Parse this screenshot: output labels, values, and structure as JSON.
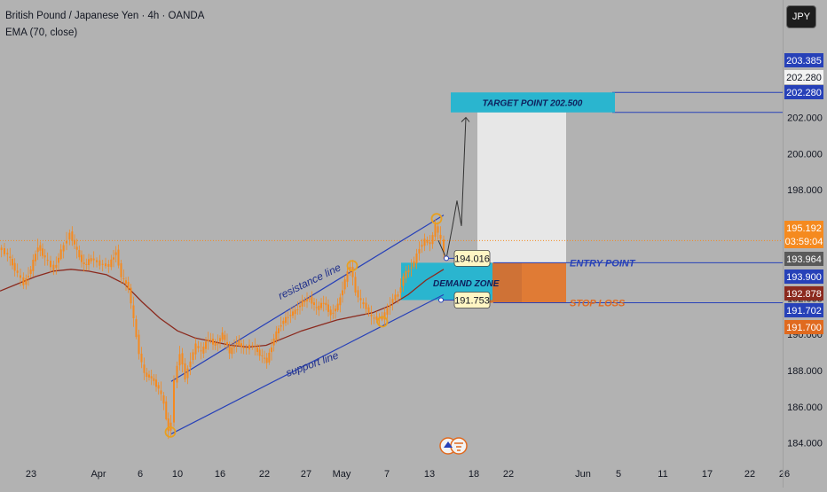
{
  "header": {
    "symbol_line": "British Pound / Japanese Yen · 4h · OANDA",
    "indicator_line": "EMA (70, close)"
  },
  "currency_button": "JPY",
  "icons": {
    "watermark": "tradingview-logo-icon"
  },
  "colors": {
    "background": "#b2b2b2",
    "candle": "#f58a1f",
    "ema": "#8b2a1e",
    "channel": "#2741b8",
    "target_box": "#2ab5cf",
    "profit_zone": "#ebebeb",
    "loss_zone": "#e07b35",
    "entry_box": "#2ab5cf",
    "markers": "#e8a020"
  },
  "chart_data": {
    "type": "candlestick",
    "ylim": [
      183.0,
      205.8
    ],
    "x_ticks": [
      "23",
      "Apr",
      "6",
      "10",
      "16",
      "22",
      "27",
      "May",
      "7",
      "13",
      "18",
      "22",
      "Jun",
      "5",
      "11",
      "17",
      "22",
      "26"
    ],
    "y_ticks": [
      184.0,
      186.0,
      188.0,
      190.0,
      192.0,
      194.0,
      196.0,
      198.0,
      200.0,
      202.0
    ],
    "y_tick_labels": [
      "184.000",
      "186.000",
      "188.000",
      "190.000",
      "192.000",
      "194.000",
      "196.000",
      "198.000",
      "200.000",
      "202.000"
    ],
    "price_path": [
      [
        0,
        194.8
      ],
      [
        10,
        194.4
      ],
      [
        18,
        193.6
      ],
      [
        28,
        192.8
      ],
      [
        36,
        193.6
      ],
      [
        44,
        194.9
      ],
      [
        52,
        194.2
      ],
      [
        62,
        193.6
      ],
      [
        70,
        194.6
      ],
      [
        80,
        195.6
      ],
      [
        88,
        194.6
      ],
      [
        96,
        193.8
      ],
      [
        104,
        194.2
      ],
      [
        114,
        193.9
      ],
      [
        124,
        193.8
      ],
      [
        132,
        194.6
      ],
      [
        138,
        193.2
      ],
      [
        146,
        192.6
      ],
      [
        152,
        190.8
      ],
      [
        158,
        189.0
      ],
      [
        164,
        187.8
      ],
      [
        172,
        187.6
      ],
      [
        180,
        187.0
      ],
      [
        186,
        186.2
      ],
      [
        191,
        184.6
      ],
      [
        194,
        185.2
      ],
      [
        198,
        187.4
      ],
      [
        204,
        189.0
      ],
      [
        210,
        187.6
      ],
      [
        216,
        188.6
      ],
      [
        222,
        189.4
      ],
      [
        228,
        189.0
      ],
      [
        236,
        189.8
      ],
      [
        244,
        189.4
      ],
      [
        252,
        190.0
      ],
      [
        260,
        189.0
      ],
      [
        268,
        189.6
      ],
      [
        276,
        189.2
      ],
      [
        286,
        189.4
      ],
      [
        294,
        188.9
      ],
      [
        302,
        188.5
      ],
      [
        310,
        189.8
      ],
      [
        318,
        190.6
      ],
      [
        326,
        191.0
      ],
      [
        334,
        191.3
      ],
      [
        342,
        191.8
      ],
      [
        350,
        192.0
      ],
      [
        358,
        191.4
      ],
      [
        366,
        191.8
      ],
      [
        374,
        191.1
      ],
      [
        382,
        191.6
      ],
      [
        390,
        193.0
      ],
      [
        396,
        193.8
      ],
      [
        402,
        192.4
      ],
      [
        408,
        191.8
      ],
      [
        414,
        191.5
      ],
      [
        420,
        190.9
      ],
      [
        426,
        190.9
      ],
      [
        432,
        190.9
      ],
      [
        438,
        191.4
      ],
      [
        444,
        192.0
      ],
      [
        450,
        192.2
      ],
      [
        456,
        193.2
      ],
      [
        462,
        193.6
      ],
      [
        468,
        194.0
      ],
      [
        474,
        194.8
      ],
      [
        480,
        195.2
      ],
      [
        486,
        195.0
      ],
      [
        492,
        196.0
      ],
      [
        498,
        195.2
      ],
      [
        502,
        194.6
      ]
    ],
    "ema_path": [
      [
        0,
        192.4
      ],
      [
        20,
        192.8
      ],
      [
        40,
        193.2
      ],
      [
        60,
        193.5
      ],
      [
        80,
        193.6
      ],
      [
        100,
        193.5
      ],
      [
        120,
        193.3
      ],
      [
        140,
        192.8
      ],
      [
        160,
        191.8
      ],
      [
        180,
        190.9
      ],
      [
        200,
        190.2
      ],
      [
        220,
        189.8
      ],
      [
        240,
        189.6
      ],
      [
        260,
        189.4
      ],
      [
        280,
        189.3
      ],
      [
        300,
        189.4
      ],
      [
        320,
        189.8
      ],
      [
        340,
        190.2
      ],
      [
        360,
        190.5
      ],
      [
        380,
        190.8
      ],
      [
        400,
        191.0
      ],
      [
        420,
        191.2
      ],
      [
        440,
        191.6
      ],
      [
        460,
        192.2
      ],
      [
        480,
        193.0
      ],
      [
        500,
        193.6
      ]
    ],
    "annotations": {
      "resistance_label": "resistance line",
      "support_label": "support line",
      "demand_zone_label": "DEMAND ZONE",
      "target_label": "TARGET POINT 202.500",
      "entry_label": "ENTRY POINT",
      "stop_label": "STOP LOSS",
      "entry_callout": "194.016",
      "stop_callout": "191.753"
    },
    "price_labels": {
      "target_high": "203.385",
      "target_mid": "202.280",
      "target_low": "202.280",
      "current_price": "195.192",
      "countdown": "03:59:04",
      "entry_a": "193.964",
      "entry_b": "193.900",
      "stop_a": "192.878",
      "stop_b": "191.702",
      "stop_c": "191.700"
    },
    "levels": {
      "target_high": 203.385,
      "target_low": 202.28,
      "current": 195.192,
      "entry": 193.964,
      "entry_b": 193.9,
      "stop_a": 192.878,
      "stop": 191.753,
      "stop_b": 191.702
    }
  }
}
